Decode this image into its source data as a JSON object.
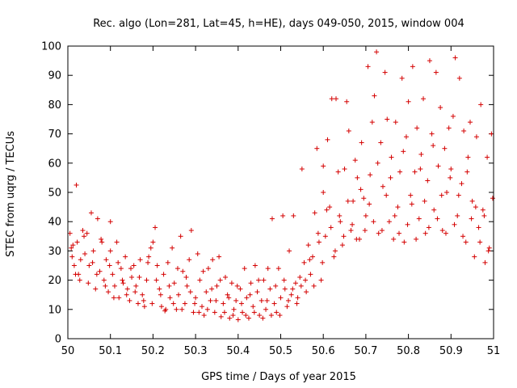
{
  "chart_data": {
    "type": "scatter",
    "title": "Rec. algo (Lon=281, Lat=45, h=HE), days 049-050, 2015, window 004",
    "xlabel": "GPS time / Days of year 2015",
    "ylabel": "STEC from uqrg / TECUs",
    "xlim": [
      50,
      51
    ],
    "ylim": [
      0,
      100
    ],
    "x_ticks": [
      "50",
      "50.1",
      "50.2",
      "50.3",
      "50.4",
      "50.5",
      "50.6",
      "50.7",
      "50.8",
      "50.9",
      "51"
    ],
    "y_ticks": [
      "0",
      "10",
      "20",
      "30",
      "40",
      "50",
      "60",
      "70",
      "80",
      "90",
      "100"
    ],
    "grid": false,
    "marker": "+",
    "point_color": "#d40000",
    "series": [
      {
        "points": [
          [
            50.005,
            36
          ],
          [
            50.01,
            28
          ],
          [
            50.012,
            32
          ],
          [
            50.015,
            25
          ],
          [
            50.02,
            52.5
          ],
          [
            50.022,
            33
          ],
          [
            50.025,
            22
          ],
          [
            50.03,
            27
          ],
          [
            50.035,
            37
          ],
          [
            50.04,
            29
          ],
          [
            50.045,
            36
          ],
          [
            50.05,
            25
          ],
          [
            50.055,
            43
          ],
          [
            50.06,
            30
          ],
          [
            50.065,
            17
          ],
          [
            50.07,
            41
          ],
          [
            50.075,
            23
          ],
          [
            50.08,
            33
          ],
          [
            50.085,
            20
          ],
          [
            50.09,
            27
          ],
          [
            50.095,
            16
          ],
          [
            50.1,
            40
          ],
          [
            50.1,
            30
          ],
          [
            50.105,
            22
          ],
          [
            50.11,
            18
          ],
          [
            50.115,
            33
          ],
          [
            50.12,
            14
          ],
          [
            50.125,
            24
          ],
          [
            50.13,
            19
          ],
          [
            50.135,
            28
          ],
          [
            50.14,
            17
          ],
          [
            50.145,
            13
          ],
          [
            50.15,
            21
          ],
          [
            50.155,
            25
          ],
          [
            50.16,
            18
          ],
          [
            50.165,
            12
          ],
          [
            50.17,
            27
          ],
          [
            50.175,
            15
          ],
          [
            50.18,
            11
          ],
          [
            50.185,
            20
          ],
          [
            50.19,
            28
          ],
          [
            50.195,
            31
          ],
          [
            50.2,
            33
          ],
          [
            50.205,
            38
          ],
          [
            50.21,
            25
          ],
          [
            50.215,
            17
          ],
          [
            50.22,
            11
          ],
          [
            50.225,
            22
          ],
          [
            50.23,
            10
          ],
          [
            50.235,
            26
          ],
          [
            50.24,
            14
          ],
          [
            50.245,
            31
          ],
          [
            50.25,
            19
          ],
          [
            50.255,
            10
          ],
          [
            50.26,
            15
          ],
          [
            50.265,
            35
          ],
          [
            50.27,
            23
          ],
          [
            50.275,
            12
          ],
          [
            50.28,
            18
          ],
          [
            50.285,
            27
          ],
          [
            50.29,
            37
          ],
          [
            50.295,
            9
          ],
          [
            50.3,
            14
          ],
          [
            50.305,
            29
          ],
          [
            50.31,
            20
          ],
          [
            50.315,
            11
          ],
          [
            50.32,
            8
          ],
          [
            50.325,
            16
          ],
          [
            50.33,
            24
          ],
          [
            50.335,
            13
          ],
          [
            50.34,
            27
          ],
          [
            50.345,
            9
          ],
          [
            50.35,
            18
          ],
          [
            50.355,
            28
          ],
          [
            50.36,
            7.5
          ],
          [
            50.365,
            12
          ],
          [
            50.37,
            21
          ],
          [
            50.375,
            15
          ],
          [
            50.38,
            7
          ],
          [
            50.385,
            19
          ],
          [
            50.39,
            10
          ],
          [
            50.395,
            13
          ],
          [
            50.4,
            6.5
          ],
          [
            50.405,
            17
          ],
          [
            50.41,
            9
          ],
          [
            50.415,
            24
          ],
          [
            50.42,
            14
          ],
          [
            50.425,
            7
          ],
          [
            50.43,
            19
          ],
          [
            50.435,
            11
          ],
          [
            50.44,
            25
          ],
          [
            50.445,
            16
          ],
          [
            50.45,
            8
          ],
          [
            50.455,
            13
          ],
          [
            50.46,
            20
          ],
          [
            50.465,
            10
          ],
          [
            50.47,
            24
          ],
          [
            50.475,
            17
          ],
          [
            50.48,
            41
          ],
          [
            50.485,
            12
          ],
          [
            50.49,
            9
          ],
          [
            50.495,
            24
          ],
          [
            50.5,
            14
          ],
          [
            50.505,
            42
          ],
          [
            50.51,
            17
          ],
          [
            50.515,
            11
          ],
          [
            50.52,
            30
          ],
          [
            50.525,
            15
          ],
          [
            50.53,
            42
          ],
          [
            50.535,
            19
          ],
          [
            50.54,
            14
          ],
          [
            50.545,
            21
          ],
          [
            50.55,
            58
          ],
          [
            50.555,
            26
          ],
          [
            50.56,
            16
          ],
          [
            50.565,
            32
          ],
          [
            50.57,
            22
          ],
          [
            50.575,
            28
          ],
          [
            50.58,
            43
          ],
          [
            50.585,
            65
          ],
          [
            50.59,
            33
          ],
          [
            50.595,
            20
          ],
          [
            50.6,
            59
          ],
          [
            50.6,
            50
          ],
          [
            50.605,
            35
          ],
          [
            50.61,
            68
          ],
          [
            50.615,
            45
          ],
          [
            50.62,
            82
          ],
          [
            50.625,
            28
          ],
          [
            50.63,
            82
          ],
          [
            50.635,
            57
          ],
          [
            50.64,
            40
          ],
          [
            50.645,
            32
          ],
          [
            50.65,
            58
          ],
          [
            50.655,
            81
          ],
          [
            50.66,
            71
          ],
          [
            50.665,
            37
          ],
          [
            50.67,
            47
          ],
          [
            50.675,
            61
          ],
          [
            50.68,
            55
          ],
          [
            50.685,
            34
          ],
          [
            50.69,
            67
          ],
          [
            50.695,
            48
          ],
          [
            50.7,
            42
          ],
          [
            50.705,
            93
          ],
          [
            50.71,
            56
          ],
          [
            50.715,
            74
          ],
          [
            50.72,
            83
          ],
          [
            50.725,
            98
          ],
          [
            50.73,
            36
          ],
          [
            50.735,
            67
          ],
          [
            50.74,
            52
          ],
          [
            50.745,
            91
          ],
          [
            50.75,
            75
          ],
          [
            50.755,
            40
          ],
          [
            50.76,
            62
          ],
          [
            50.765,
            34
          ],
          [
            50.77,
            74
          ],
          [
            50.775,
            45
          ],
          [
            50.78,
            57
          ],
          [
            50.785,
            89
          ],
          [
            50.79,
            33
          ],
          [
            50.795,
            69
          ],
          [
            50.8,
            81
          ],
          [
            50.805,
            49
          ],
          [
            50.81,
            93
          ],
          [
            50.815,
            57
          ],
          [
            50.82,
            72
          ],
          [
            50.825,
            41
          ],
          [
            50.83,
            63
          ],
          [
            50.835,
            82
          ],
          [
            50.84,
            36
          ],
          [
            50.845,
            54
          ],
          [
            50.85,
            95
          ],
          [
            50.855,
            70
          ],
          [
            50.86,
            44
          ],
          [
            50.865,
            91
          ],
          [
            50.87,
            59
          ],
          [
            50.875,
            79
          ],
          [
            50.88,
            37
          ],
          [
            50.885,
            65
          ],
          [
            50.89,
            50
          ],
          [
            50.895,
            72
          ],
          [
            50.9,
            58
          ],
          [
            50.905,
            76
          ],
          [
            50.91,
            96
          ],
          [
            50.915,
            42
          ],
          [
            50.92,
            89
          ],
          [
            50.925,
            53
          ],
          [
            50.93,
            71
          ],
          [
            50.935,
            33
          ],
          [
            50.94,
            62
          ],
          [
            50.945,
            74
          ],
          [
            50.95,
            47
          ],
          [
            50.955,
            28
          ],
          [
            50.96,
            69
          ],
          [
            50.965,
            38
          ],
          [
            50.97,
            80
          ],
          [
            50.975,
            44
          ],
          [
            50.98,
            26
          ],
          [
            50.985,
            62
          ],
          [
            50.99,
            31
          ],
          [
            50.995,
            70
          ],
          [
            50.008,
            31
          ],
          [
            50.018,
            22
          ],
          [
            50.028,
            20
          ],
          [
            50.038,
            35
          ],
          [
            50.048,
            19
          ],
          [
            50.058,
            26
          ],
          [
            50.068,
            22
          ],
          [
            50.078,
            34
          ],
          [
            50.088,
            18
          ],
          [
            50.098,
            25
          ],
          [
            50.108,
            14
          ],
          [
            50.118,
            26
          ],
          [
            50.128,
            20
          ],
          [
            50.138,
            15
          ],
          [
            50.148,
            24
          ],
          [
            50.158,
            16
          ],
          [
            50.168,
            21
          ],
          [
            50.178,
            13
          ],
          [
            50.188,
            26
          ],
          [
            50.198,
            12
          ],
          [
            50.208,
            20
          ],
          [
            50.218,
            15
          ],
          [
            50.228,
            9.5
          ],
          [
            50.238,
            18
          ],
          [
            50.248,
            12
          ],
          [
            50.258,
            24
          ],
          [
            50.268,
            10
          ],
          [
            50.278,
            21
          ],
          [
            50.288,
            16
          ],
          [
            50.298,
            12
          ],
          [
            50.308,
            9
          ],
          [
            50.318,
            23
          ],
          [
            50.328,
            10
          ],
          [
            50.338,
            17
          ],
          [
            50.348,
            13
          ],
          [
            50.358,
            20
          ],
          [
            50.368,
            9
          ],
          [
            50.378,
            14
          ],
          [
            50.388,
            8
          ],
          [
            50.398,
            18
          ],
          [
            50.408,
            12
          ],
          [
            50.418,
            8
          ],
          [
            50.428,
            15
          ],
          [
            50.438,
            9
          ],
          [
            50.448,
            20
          ],
          [
            50.458,
            7
          ],
          [
            50.468,
            13
          ],
          [
            50.478,
            8
          ],
          [
            50.488,
            18
          ],
          [
            50.498,
            8
          ],
          [
            50.508,
            20
          ],
          [
            50.518,
            13
          ],
          [
            50.528,
            17
          ],
          [
            50.538,
            12
          ],
          [
            50.548,
            18
          ],
          [
            50.558,
            20
          ],
          [
            50.568,
            27
          ],
          [
            50.578,
            18
          ],
          [
            50.588,
            36
          ],
          [
            50.598,
            26
          ],
          [
            50.608,
            44
          ],
          [
            50.618,
            38
          ],
          [
            50.628,
            30
          ],
          [
            50.638,
            42
          ],
          [
            50.648,
            35
          ],
          [
            50.658,
            47
          ],
          [
            50.668,
            39
          ],
          [
            50.678,
            34
          ],
          [
            50.688,
            51
          ],
          [
            50.698,
            37
          ],
          [
            50.708,
            46
          ],
          [
            50.718,
            40
          ],
          [
            50.728,
            60
          ],
          [
            50.738,
            37
          ],
          [
            50.748,
            49
          ],
          [
            50.758,
            55
          ],
          [
            50.768,
            42
          ],
          [
            50.778,
            36
          ],
          [
            50.788,
            64
          ],
          [
            50.798,
            39
          ],
          [
            50.808,
            46
          ],
          [
            50.818,
            34
          ],
          [
            50.828,
            58
          ],
          [
            50.838,
            47
          ],
          [
            50.848,
            38
          ],
          [
            50.858,
            66
          ],
          [
            50.868,
            41
          ],
          [
            50.878,
            49
          ],
          [
            50.888,
            36
          ],
          [
            50.898,
            55
          ],
          [
            50.908,
            39
          ],
          [
            50.918,
            49
          ],
          [
            50.928,
            35
          ],
          [
            50.938,
            57
          ],
          [
            50.948,
            41
          ],
          [
            50.958,
            45
          ],
          [
            50.968,
            33
          ],
          [
            50.978,
            42
          ],
          [
            50.988,
            30
          ],
          [
            50.998,
            48
          ]
        ]
      }
    ]
  }
}
